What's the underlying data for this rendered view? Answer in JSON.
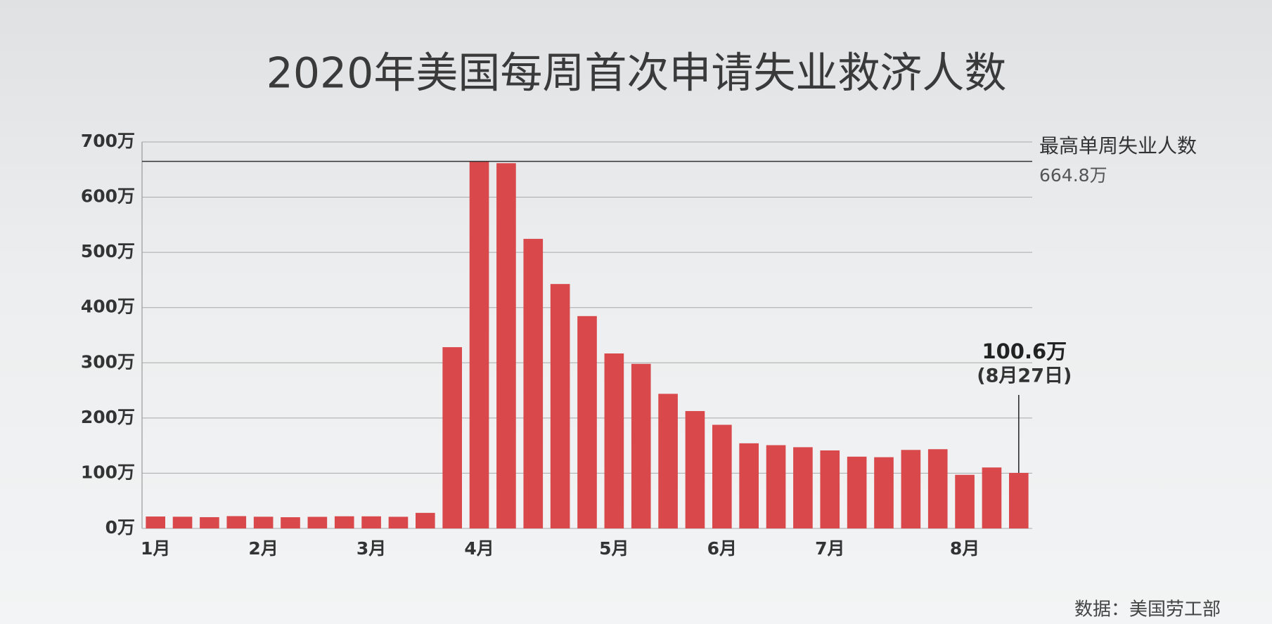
{
  "chart_data": {
    "type": "bar",
    "title": "2020年美国每周首次申请失业救济人数",
    "categories": [
      "1月",
      null,
      null,
      null,
      "2月",
      null,
      null,
      null,
      "3月",
      null,
      null,
      null,
      "4月",
      null,
      null,
      null,
      null,
      "5月",
      null,
      null,
      null,
      "6月",
      null,
      null,
      null,
      "7月",
      null,
      null,
      null,
      null,
      "8月",
      null,
      null
    ],
    "values": [
      21.6,
      21.2,
      20.4,
      22.3,
      21.2,
      20.3,
      21.0,
      22.0,
      21.9,
      21.1,
      28.2,
      328.3,
      664.8,
      661.5,
      524.5,
      442.7,
      384.6,
      316.9,
      298.1,
      243.8,
      212.6,
      187.7,
      154.2,
      150.8,
      147.1,
      141.3,
      130.0,
      129.0,
      142.2,
      143.5,
      97.1,
      110.4,
      100.6
    ],
    "value_labels": [
      null,
      null,
      null,
      null,
      null,
      null,
      null,
      null,
      null,
      null,
      null,
      null,
      null,
      null,
      null,
      null,
      null,
      null,
      null,
      null,
      null,
      null,
      null,
      null,
      null,
      null,
      null,
      null,
      null,
      null,
      null,
      null,
      "100.6万"
    ],
    "color": "#d9484b",
    "ylim": [
      0,
      700
    ],
    "yticks": [
      {
        "value": 0,
        "label": "0万"
      },
      {
        "value": 100,
        "label": "100万"
      },
      {
        "value": 200,
        "label": "200万"
      },
      {
        "value": 300,
        "label": "300万"
      },
      {
        "value": 400,
        "label": "400万"
      },
      {
        "value": 500,
        "label": "500万"
      },
      {
        "value": 600,
        "label": "600万"
      },
      {
        "value": 700,
        "label": "700万"
      }
    ],
    "grid": true,
    "max_line": {
      "title": "最高单周失业人数",
      "value": 664.8,
      "label": "664.8万"
    },
    "last_note": "(8月27日)",
    "source": "数据：美国劳工部"
  }
}
